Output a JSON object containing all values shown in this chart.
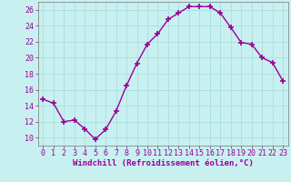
{
  "x": [
    0,
    1,
    2,
    3,
    4,
    5,
    6,
    7,
    8,
    9,
    10,
    11,
    12,
    13,
    14,
    15,
    16,
    17,
    18,
    19,
    20,
    21,
    22,
    23
  ],
  "y": [
    14.8,
    14.3,
    12.0,
    12.2,
    11.1,
    9.8,
    11.0,
    13.3,
    16.5,
    19.3,
    21.7,
    23.0,
    24.8,
    25.6,
    26.4,
    26.4,
    26.4,
    25.6,
    23.8,
    21.9,
    21.7,
    20.0,
    19.4,
    17.1
  ],
  "line_color": "#990099",
  "marker": "+",
  "marker_size": 4,
  "marker_linewidth": 1.2,
  "bg_color": "#c8f0f0",
  "grid_color": "#aadddd",
  "xlabel": "Windchill (Refroidissement éolien,°C)",
  "xlim": [
    -0.5,
    23.5
  ],
  "ylim": [
    9,
    27
  ],
  "yticks": [
    10,
    12,
    14,
    16,
    18,
    20,
    22,
    24,
    26
  ],
  "xticks": [
    0,
    1,
    2,
    3,
    4,
    5,
    6,
    7,
    8,
    9,
    10,
    11,
    12,
    13,
    14,
    15,
    16,
    17,
    18,
    19,
    20,
    21,
    22,
    23
  ],
  "xlabel_fontsize": 6.5,
  "tick_fontsize": 6.0,
  "label_color": "#990099",
  "line_width": 1.0,
  "spine_color": "#888888"
}
